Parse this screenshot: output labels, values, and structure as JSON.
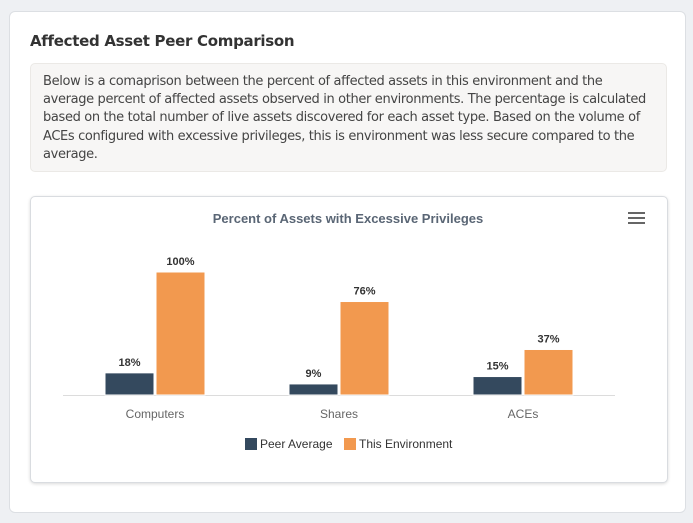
{
  "panel": {
    "title": "Affected Asset Peer Comparison",
    "description": "Below is a comaprison between the percent of affected assets in this environment and the average percent of affected assets observed in other environments. The percentage is calculated based on the total number of live assets discovered for each asset type. Based on the volume of ACEs configured with excessive privileges, this is environment was less secure compared to the average."
  },
  "chart_data": {
    "type": "bar",
    "title": "Percent of Assets with Excessive Privileges",
    "categories": [
      "Computers",
      "Shares",
      "ACEs"
    ],
    "series": [
      {
        "name": "Peer Average",
        "values": [
          18,
          9,
          15
        ],
        "color": "#34495e"
      },
      {
        "name": "This Environment",
        "values": [
          100,
          76,
          37
        ],
        "color": "#f2994f"
      }
    ],
    "data_labels": [
      [
        "18%",
        "9%",
        "15%"
      ],
      [
        "100%",
        "76%",
        "37%"
      ]
    ],
    "ylim": [
      0,
      100
    ],
    "grid": false,
    "legend": "bottom",
    "menu_icon": "hamburger-menu-icon"
  }
}
